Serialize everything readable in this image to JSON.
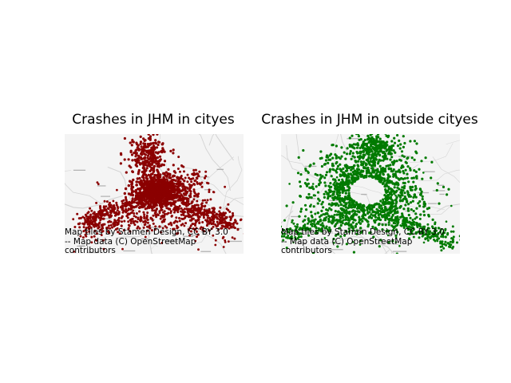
{
  "figure": {
    "panels": [
      {
        "title": "Crashes in JHM in cityes",
        "point_color": "#8b0000",
        "attribution": "Map tiles by Stamen Design, CC BY 3.0\n-- Map data (C) OpenStreetMap\ncontributors"
      },
      {
        "title": "Crashes in JHM in outside cityes",
        "point_color": "#007a00",
        "attribution": "Map tiles by Stamen Design, CC BY 3.0\n-- Map data (C) OpenStreetMap\ncontributors"
      }
    ]
  },
  "basemap": {
    "road_color": "#d4d4d4",
    "land_color": "#f4f4f4"
  }
}
